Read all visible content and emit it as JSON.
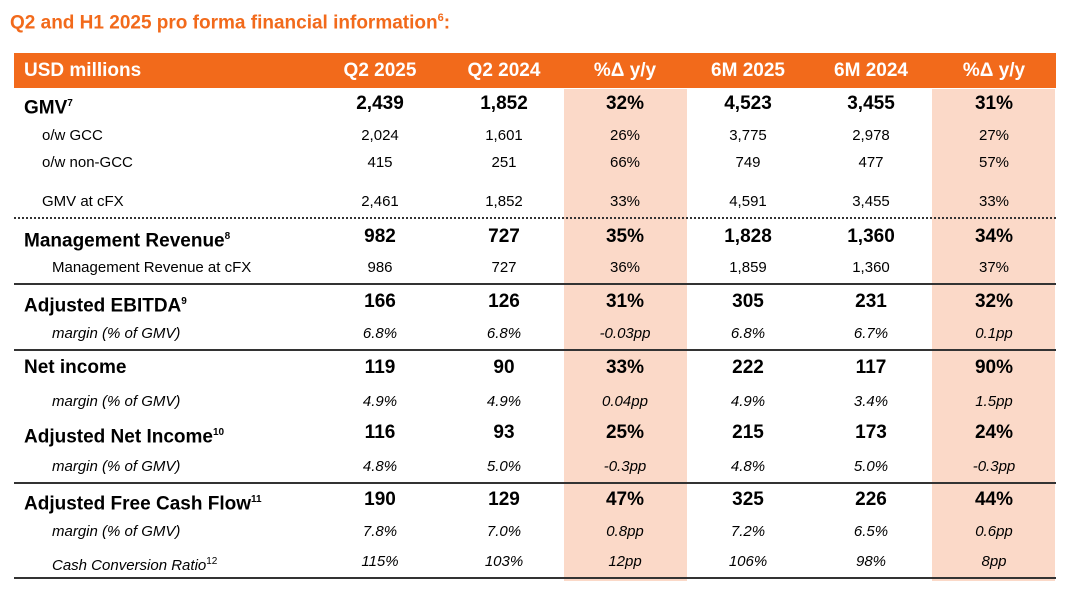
{
  "title": {
    "text": "Q2 and H1 2025 pro forma financial information",
    "note": "6",
    "suffix": ":"
  },
  "header": [
    "USD millions",
    "Q2 2025",
    "Q2 2024",
    "%Δ y/y",
    "6M 2025",
    "6M 2024",
    "%Δ y/y"
  ],
  "rows": [
    {
      "label": "GMV",
      "note": "7",
      "values": [
        "2,439",
        "1,852",
        "32%",
        "4,523",
        "3,455",
        "31%"
      ]
    },
    {
      "label": "o/w GCC",
      "values": [
        "2,024",
        "1,601",
        "26%",
        "3,775",
        "2,978",
        "27%"
      ]
    },
    {
      "label": "o/w non-GCC",
      "values": [
        "415",
        "251",
        "66%",
        "749",
        "477",
        "57%"
      ]
    },
    {
      "label": "GMV at cFX",
      "values": [
        "2,461",
        "1,852",
        "33%",
        "4,591",
        "3,455",
        "33%"
      ]
    },
    {
      "label": "Management Revenue",
      "note": "8",
      "values": [
        "982",
        "727",
        "35%",
        "1,828",
        "1,360",
        "34%"
      ]
    },
    {
      "label": "Management Revenue at cFX",
      "values": [
        "986",
        "727",
        "36%",
        "1,859",
        "1,360",
        "37%"
      ]
    },
    {
      "label": "Adjusted EBITDA",
      "note": "9",
      "values": [
        "166",
        "126",
        "31%",
        "305",
        "231",
        "32%"
      ]
    },
    {
      "label": "margin (% of GMV)",
      "values": [
        "6.8%",
        "6.8%",
        "-0.03pp",
        "6.8%",
        "6.7%",
        "0.1pp"
      ]
    },
    {
      "label": "Net income",
      "values": [
        "119",
        "90",
        "33%",
        "222",
        "117",
        "90%"
      ]
    },
    {
      "label": "margin (% of GMV)",
      "values": [
        "4.9%",
        "4.9%",
        "0.04pp",
        "4.9%",
        "3.4%",
        "1.5pp"
      ]
    },
    {
      "label": "Adjusted Net Income",
      "note": "10",
      "values": [
        "116",
        "93",
        "25%",
        "215",
        "173",
        "24%"
      ]
    },
    {
      "label": "margin (% of GMV)",
      "values": [
        "4.8%",
        "5.0%",
        "-0.3pp",
        "4.8%",
        "5.0%",
        "-0.3pp"
      ]
    },
    {
      "label": "Adjusted Free Cash Flow",
      "note": "11",
      "values": [
        "190",
        "129",
        "47%",
        "325",
        "226",
        "44%"
      ]
    },
    {
      "label": "margin (% of GMV)",
      "values": [
        "7.8%",
        "7.0%",
        "0.8pp",
        "7.2%",
        "6.5%",
        "0.6pp"
      ]
    },
    {
      "label": "Cash Conversion Ratio",
      "note": "12",
      "values": [
        "115%",
        "103%",
        "12pp",
        "106%",
        "98%",
        "8pp"
      ]
    }
  ],
  "colors": {
    "accent": "#f26a1b",
    "shade": "#fbd9c8"
  }
}
